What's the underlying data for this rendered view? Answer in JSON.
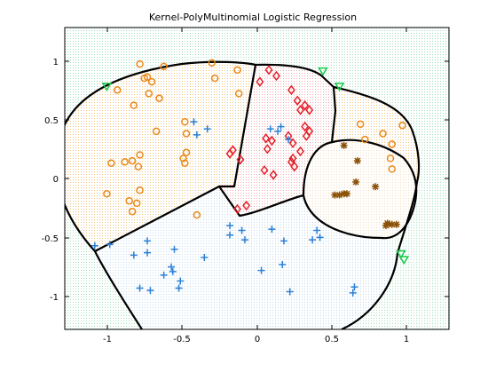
{
  "chart_data": {
    "type": "scatter",
    "title": "Kernel-PolyMultinomial Logistic Regression",
    "xlabel": "",
    "ylabel": "",
    "xlim": [
      -1.28,
      1.28
    ],
    "ylim": [
      -1.28,
      1.28
    ],
    "x_ticks": [
      -1,
      -0.5,
      0,
      0.5,
      1
    ],
    "x_tick_labels": [
      "-1",
      "-0.5",
      "0",
      "0.5",
      "1"
    ],
    "y_ticks": [
      1,
      0.5,
      0,
      -0.5,
      -1
    ],
    "y_tick_labels": [
      "1",
      "0.5",
      "0",
      "-0.5",
      "-1"
    ],
    "grid": false,
    "legend": "none",
    "background_region_color": "#9ee0bd",
    "series": [
      {
        "marker": "circle",
        "color": "#e8891a",
        "region_color": "#f3c27d",
        "points": [
          [
            -0.78,
            0.97
          ],
          [
            -0.62,
            0.95
          ],
          [
            -0.3,
            0.98
          ],
          [
            -0.13,
            0.92
          ],
          [
            -0.73,
            0.86
          ],
          [
            -0.75,
            0.85
          ],
          [
            -0.7,
            0.82
          ],
          [
            -0.28,
            0.85
          ],
          [
            -0.12,
            0.72
          ],
          [
            -0.93,
            0.75
          ],
          [
            -0.72,
            0.72
          ],
          [
            -0.65,
            0.68
          ],
          [
            -0.82,
            0.62
          ],
          [
            -0.67,
            0.4
          ],
          [
            -0.48,
            0.48
          ],
          [
            -0.47,
            0.38
          ],
          [
            -0.78,
            0.2
          ],
          [
            -0.83,
            0.15
          ],
          [
            -0.97,
            0.13
          ],
          [
            -0.88,
            0.14
          ],
          [
            -0.47,
            0.22
          ],
          [
            -0.49,
            0.17
          ],
          [
            -0.48,
            0.13
          ],
          [
            -0.79,
            0.1
          ],
          [
            -1.0,
            -0.13
          ],
          [
            -0.78,
            -0.1
          ],
          [
            -0.8,
            -0.21
          ],
          [
            -0.85,
            -0.19
          ],
          [
            -0.83,
            -0.28
          ],
          [
            -0.4,
            -0.31
          ],
          [
            0.69,
            0.46
          ],
          [
            0.72,
            0.33
          ],
          [
            0.84,
            0.38
          ],
          [
            0.9,
            0.29
          ],
          [
            0.97,
            0.45
          ],
          [
            0.89,
            0.17
          ],
          [
            0.9,
            0.08
          ]
        ]
      },
      {
        "marker": "diamond",
        "color": "#e4202a",
        "region_color": "#f3a6a6",
        "points": [
          [
            0.08,
            0.92
          ],
          [
            0.13,
            0.87
          ],
          [
            0.02,
            0.82
          ],
          [
            0.23,
            0.75
          ],
          [
            0.27,
            0.66
          ],
          [
            0.29,
            0.58
          ],
          [
            0.32,
            0.62
          ],
          [
            0.35,
            0.58
          ],
          [
            0.32,
            0.44
          ],
          [
            0.35,
            0.4
          ],
          [
            0.33,
            0.36
          ],
          [
            0.24,
            0.3
          ],
          [
            0.21,
            0.36
          ],
          [
            0.1,
            0.32
          ],
          [
            0.06,
            0.34
          ],
          [
            0.07,
            0.25
          ],
          [
            0.29,
            0.23
          ],
          [
            0.24,
            0.17
          ],
          [
            0.23,
            0.14
          ],
          [
            0.25,
            0.1
          ],
          [
            -0.16,
            0.24
          ],
          [
            -0.18,
            0.21
          ],
          [
            -0.11,
            0.16
          ],
          [
            0.05,
            0.07
          ],
          [
            0.11,
            0.03
          ],
          [
            -0.13,
            -0.26
          ],
          [
            -0.07,
            -0.23
          ]
        ]
      },
      {
        "marker": "star",
        "color": "#8b5208",
        "region_color": "#f4d9b0",
        "points": [
          [
            0.58,
            0.28
          ],
          [
            0.67,
            0.15
          ],
          [
            0.6,
            -0.13
          ],
          [
            0.55,
            -0.14
          ],
          [
            0.52,
            -0.14
          ],
          [
            0.66,
            -0.03
          ],
          [
            0.79,
            -0.07
          ],
          [
            0.58,
            -0.13
          ],
          [
            0.87,
            -0.38
          ],
          [
            0.9,
            -0.39
          ],
          [
            0.93,
            -0.39
          ],
          [
            0.86,
            -0.4
          ]
        ]
      },
      {
        "marker": "plus",
        "color": "#2b80d6",
        "region_color": "#b8d7ef",
        "points": [
          [
            -0.42,
            0.48
          ],
          [
            -0.33,
            0.42
          ],
          [
            -0.4,
            0.37
          ],
          [
            0.14,
            0.4
          ],
          [
            0.09,
            0.42
          ],
          [
            0.16,
            0.44
          ],
          [
            0.21,
            0.33
          ],
          [
            -0.18,
            -0.4
          ],
          [
            -0.1,
            -0.44
          ],
          [
            0.1,
            -0.43
          ],
          [
            -0.18,
            -0.48
          ],
          [
            -0.08,
            -0.52
          ],
          [
            0.18,
            -0.53
          ],
          [
            0.37,
            -0.52
          ],
          [
            0.4,
            -0.44
          ],
          [
            0.42,
            -0.5
          ],
          [
            -1.08,
            -0.57
          ],
          [
            -0.98,
            -0.56
          ],
          [
            -0.73,
            -0.53
          ],
          [
            -0.82,
            -0.65
          ],
          [
            -0.73,
            -0.63
          ],
          [
            -0.55,
            -0.6
          ],
          [
            -0.35,
            -0.67
          ],
          [
            -0.57,
            -0.75
          ],
          [
            -0.56,
            -0.79
          ],
          [
            -0.62,
            -0.82
          ],
          [
            -0.51,
            -0.87
          ],
          [
            0.17,
            -0.73
          ],
          [
            0.03,
            -0.78
          ],
          [
            -0.78,
            -0.93
          ],
          [
            -0.71,
            -0.95
          ],
          [
            -0.52,
            -0.93
          ],
          [
            0.22,
            -0.96
          ],
          [
            0.65,
            -0.92
          ],
          [
            0.64,
            -0.97
          ]
        ]
      },
      {
        "marker": "triangle-down",
        "color": "#14c848",
        "region_color": "#9ee0bd",
        "points": [
          [
            -1.0,
            0.78
          ],
          [
            0.44,
            0.91
          ],
          [
            0.55,
            0.78
          ],
          [
            0.96,
            -0.64
          ],
          [
            0.98,
            -0.69
          ]
        ]
      }
    ]
  }
}
